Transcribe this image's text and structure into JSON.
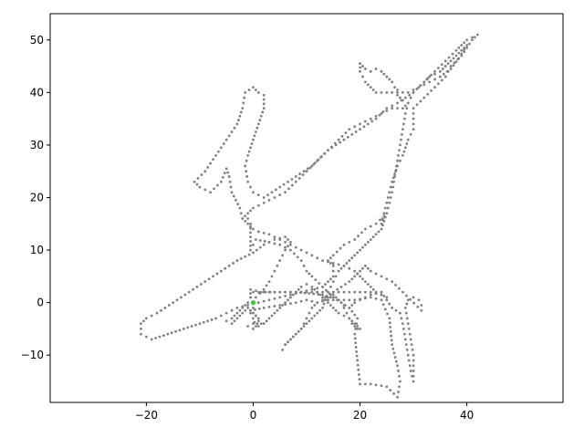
{
  "chart_data": {
    "type": "scatter",
    "title": "",
    "xlabel": "",
    "ylabel": "",
    "xlim": [
      -38,
      58
    ],
    "ylim": [
      -19,
      55
    ],
    "x_ticks": [
      -20,
      0,
      20,
      40
    ],
    "y_ticks": [
      -10,
      0,
      10,
      20,
      30,
      40,
      50
    ],
    "x_tick_labels": [
      "−20",
      "0",
      "20",
      "40"
    ],
    "y_tick_labels": [
      "−10",
      "0",
      "10",
      "20",
      "30",
      "40",
      "50"
    ],
    "grid": false,
    "legend": "none",
    "point_color": "#808080",
    "highlight_color": "#33cc33",
    "trajectory_waypoints": [
      [
        0,
        0
      ],
      [
        -0.5,
        1
      ],
      [
        -0.5,
        2.5
      ],
      [
        1.5,
        2
      ],
      [
        4,
        2
      ],
      [
        8,
        2
      ],
      [
        13,
        1.5
      ],
      [
        14,
        0.5
      ],
      [
        16,
        0.5
      ],
      [
        19,
        0.5
      ],
      [
        22,
        1
      ],
      [
        24,
        0.5
      ],
      [
        25.5,
        -3
      ],
      [
        26,
        -8
      ],
      [
        27,
        -12
      ],
      [
        27.5,
        -15
      ],
      [
        27,
        -18
      ],
      [
        25,
        -16
      ],
      [
        22,
        -15.5
      ],
      [
        20,
        -15.5
      ],
      [
        19.5,
        -11
      ],
      [
        19,
        -6
      ],
      [
        19.5,
        -3
      ],
      [
        18,
        -1
      ],
      [
        15,
        1
      ],
      [
        13,
        3
      ],
      [
        11,
        5
      ],
      [
        10,
        6
      ],
      [
        9,
        8
      ],
      [
        7,
        10
      ],
      [
        5,
        11
      ],
      [
        3,
        11.5
      ],
      [
        0.5,
        12
      ],
      [
        -0.5,
        10
      ],
      [
        -0.5,
        15
      ],
      [
        -1,
        16
      ],
      [
        -2,
        16
      ],
      [
        -2.5,
        18
      ],
      [
        -4,
        21
      ],
      [
        -4.5,
        24
      ],
      [
        -5,
        25.5
      ],
      [
        -6,
        23
      ],
      [
        -8,
        21
      ],
      [
        -10,
        22
      ],
      [
        -11,
        23
      ],
      [
        -9,
        25
      ],
      [
        -7,
        28
      ],
      [
        -5,
        31
      ],
      [
        -3,
        34
      ],
      [
        -2,
        37
      ],
      [
        -1.5,
        40
      ],
      [
        0,
        41
      ],
      [
        1,
        40
      ],
      [
        2,
        39.5
      ],
      [
        2,
        37
      ],
      [
        1,
        34
      ],
      [
        0,
        31
      ],
      [
        -1,
        28
      ],
      [
        -1.5,
        26
      ],
      [
        -1,
        23
      ],
      [
        0,
        21
      ],
      [
        2,
        20
      ],
      [
        5,
        22
      ],
      [
        8,
        24
      ],
      [
        11,
        26
      ],
      [
        14,
        29
      ],
      [
        17,
        31
      ],
      [
        20,
        33
      ],
      [
        23,
        35
      ],
      [
        25,
        37
      ],
      [
        27,
        38
      ],
      [
        30,
        40
      ],
      [
        32,
        42
      ],
      [
        34,
        44
      ],
      [
        36,
        46
      ],
      [
        38,
        48
      ],
      [
        39,
        49
      ],
      [
        40,
        50
      ],
      [
        41,
        50.5
      ],
      [
        42,
        51
      ],
      [
        41,
        50
      ],
      [
        39,
        47
      ],
      [
        37,
        45
      ],
      [
        36,
        43
      ],
      [
        34,
        41
      ],
      [
        32,
        39
      ],
      [
        30,
        37
      ],
      [
        30,
        35
      ],
      [
        30,
        33
      ],
      [
        29,
        31
      ],
      [
        28,
        28
      ],
      [
        27,
        26
      ],
      [
        26,
        23
      ],
      [
        25.5,
        21
      ],
      [
        25,
        19
      ],
      [
        24.5,
        17
      ],
      [
        24,
        15
      ],
      [
        24.5,
        16.5
      ],
      [
        23,
        15
      ],
      [
        21,
        14
      ],
      [
        19,
        12
      ],
      [
        17,
        11
      ],
      [
        15,
        9
      ],
      [
        14,
        8
      ],
      [
        15,
        7
      ],
      [
        15,
        5
      ],
      [
        14,
        4
      ],
      [
        13,
        3
      ],
      [
        11,
        2.5
      ],
      [
        9,
        2
      ],
      [
        7,
        1.5
      ],
      [
        5,
        1
      ],
      [
        3,
        0.5
      ],
      [
        1,
        0
      ],
      [
        -1,
        -0.5
      ],
      [
        -3,
        -1
      ],
      [
        -5,
        -2
      ],
      [
        -7,
        -3
      ],
      [
        -10,
        -4
      ],
      [
        -13,
        -5
      ],
      [
        -16,
        -6
      ],
      [
        -19,
        -7
      ],
      [
        -21,
        -6
      ],
      [
        -21,
        -4
      ],
      [
        -20,
        -3
      ],
      [
        -18,
        -2
      ],
      [
        -15,
        0
      ],
      [
        -12,
        2
      ],
      [
        -9,
        4
      ],
      [
        -6,
        6
      ],
      [
        -3,
        8
      ],
      [
        0,
        9.5
      ],
      [
        2,
        11
      ],
      [
        4,
        12
      ],
      [
        6,
        12.5
      ],
      [
        7,
        11.5
      ],
      [
        6,
        10
      ],
      [
        5,
        8
      ],
      [
        4,
        6
      ],
      [
        3,
        4
      ],
      [
        2,
        2.5
      ],
      [
        0.5,
        1
      ],
      [
        0,
        0
      ],
      [
        0,
        -1
      ],
      [
        -0.5,
        -2
      ],
      [
        0,
        -3
      ],
      [
        0.5,
        -4.5
      ],
      [
        1,
        -3.5
      ],
      [
        0.5,
        -2.5
      ],
      [
        -0.5,
        -1.5
      ],
      [
        2,
        -1
      ],
      [
        5,
        -0.5
      ],
      [
        8,
        0
      ],
      [
        10,
        0.5
      ],
      [
        12,
        0
      ],
      [
        14,
        0.5
      ],
      [
        15,
        1.5
      ],
      [
        16,
        0.5
      ],
      [
        17,
        -0.5
      ],
      [
        18,
        -1
      ],
      [
        19,
        0
      ],
      [
        20,
        0.5
      ],
      [
        22,
        1.5
      ],
      [
        24,
        2
      ],
      [
        25,
        0.5
      ],
      [
        26,
        -1
      ],
      [
        27.5,
        -2
      ],
      [
        28,
        -4
      ],
      [
        28.5,
        -7
      ],
      [
        29,
        -10
      ],
      [
        29.5,
        -13
      ],
      [
        30,
        -15
      ],
      [
        30,
        -13
      ],
      [
        30,
        -10
      ],
      [
        29.5,
        -7
      ],
      [
        29,
        -4
      ],
      [
        28.5,
        -1
      ],
      [
        29,
        0.5
      ],
      [
        30,
        1
      ],
      [
        31,
        0.5
      ],
      [
        31.5,
        -0.5
      ],
      [
        31.5,
        -1.5
      ],
      [
        28,
        2
      ],
      [
        26,
        4
      ],
      [
        24,
        5
      ],
      [
        22,
        6
      ],
      [
        21,
        7
      ],
      [
        20,
        6
      ],
      [
        19,
        5
      ],
      [
        18,
        4
      ],
      [
        16.5,
        3
      ],
      [
        15,
        2
      ],
      [
        14,
        1
      ],
      [
        12,
        0
      ],
      [
        11,
        -1
      ],
      [
        10,
        -3
      ],
      [
        9,
        -5
      ],
      [
        8,
        -6
      ],
      [
        7,
        -7
      ],
      [
        6,
        -8
      ],
      [
        5.5,
        -9
      ],
      [
        6,
        -8
      ],
      [
        7,
        -7
      ],
      [
        8,
        -6
      ],
      [
        9,
        -5
      ],
      [
        10,
        -4
      ],
      [
        11,
        -3
      ],
      [
        12,
        -2
      ],
      [
        13,
        -1
      ],
      [
        13.5,
        0.5
      ],
      [
        14,
        2
      ],
      [
        15,
        4
      ],
      [
        16,
        6
      ],
      [
        17,
        7
      ],
      [
        18,
        8
      ],
      [
        19,
        9
      ],
      [
        20,
        10
      ],
      [
        21,
        11
      ],
      [
        22,
        12
      ],
      [
        23,
        13
      ],
      [
        24,
        14
      ],
      [
        24.5,
        15.5
      ],
      [
        25,
        17
      ],
      [
        25.5,
        19
      ],
      [
        26,
        21
      ],
      [
        26.5,
        24
      ],
      [
        27,
        27
      ],
      [
        27.5,
        30
      ],
      [
        28,
        33
      ],
      [
        28.5,
        36
      ],
      [
        29,
        38
      ],
      [
        30,
        40
      ],
      [
        32,
        42
      ],
      [
        33,
        43
      ],
      [
        35,
        44
      ],
      [
        36,
        45
      ],
      [
        37,
        46
      ],
      [
        38,
        47
      ],
      [
        39,
        48
      ],
      [
        40,
        49
      ],
      [
        38.5,
        46.5
      ],
      [
        37,
        44.5
      ],
      [
        35,
        43
      ],
      [
        33,
        42
      ],
      [
        31,
        41
      ],
      [
        29,
        40
      ],
      [
        27,
        40
      ],
      [
        25,
        40
      ],
      [
        23,
        40
      ],
      [
        22,
        41
      ],
      [
        21,
        42
      ],
      [
        20.5,
        43
      ],
      [
        20,
        44
      ],
      [
        20,
        45.5
      ],
      [
        20.5,
        45
      ],
      [
        21,
        44.5
      ],
      [
        22,
        44
      ],
      [
        23,
        44.5
      ],
      [
        24,
        44
      ],
      [
        25,
        43
      ],
      [
        26,
        42
      ],
      [
        26.5,
        41
      ],
      [
        27,
        40.5
      ],
      [
        27,
        39.5
      ],
      [
        28,
        38.5
      ],
      [
        29,
        38
      ],
      [
        28,
        37
      ],
      [
        26,
        37
      ],
      [
        24,
        36
      ],
      [
        22,
        35
      ],
      [
        20,
        34
      ],
      [
        18,
        33
      ],
      [
        16,
        31
      ],
      [
        14,
        29
      ],
      [
        12,
        27
      ],
      [
        10,
        25
      ],
      [
        8,
        23
      ],
      [
        6,
        21
      ],
      [
        4,
        20
      ],
      [
        2,
        19
      ],
      [
        0,
        18
      ],
      [
        -1,
        17
      ],
      [
        -2,
        16
      ],
      [
        -1,
        15
      ],
      [
        0,
        14
      ],
      [
        1,
        13.5
      ],
      [
        3,
        13
      ],
      [
        5,
        12
      ],
      [
        7,
        11
      ],
      [
        9,
        10
      ],
      [
        11,
        9
      ],
      [
        13,
        8
      ],
      [
        15,
        7.5
      ],
      [
        17,
        7
      ],
      [
        18,
        6.5
      ],
      [
        19,
        6
      ],
      [
        20,
        5
      ],
      [
        21,
        4
      ],
      [
        22,
        3
      ],
      [
        23,
        2
      ],
      [
        24,
        1.5
      ],
      [
        25,
        1
      ],
      [
        24,
        1.5
      ],
      [
        22,
        2
      ],
      [
        20,
        2
      ],
      [
        18,
        2
      ],
      [
        16,
        2
      ],
      [
        14,
        2
      ],
      [
        12,
        2
      ],
      [
        10,
        2
      ],
      [
        8,
        2
      ],
      [
        6,
        2
      ],
      [
        4,
        2
      ],
      [
        2,
        2
      ],
      [
        0,
        2
      ],
      [
        -1,
        0
      ],
      [
        -2,
        -1
      ],
      [
        -3,
        -2
      ],
      [
        -4,
        -3
      ],
      [
        -5,
        -3.5
      ],
      [
        -4,
        -4
      ],
      [
        -3,
        -3
      ],
      [
        -2,
        -2
      ],
      [
        -1,
        -1
      ],
      [
        0,
        -2
      ],
      [
        1,
        -3
      ],
      [
        1.5,
        -4
      ],
      [
        0,
        -4
      ],
      [
        -1,
        -4.5
      ],
      [
        0,
        -5
      ],
      [
        2,
        -4
      ],
      [
        3,
        -3
      ],
      [
        4,
        -2
      ],
      [
        5,
        -1
      ],
      [
        6,
        0
      ],
      [
        7,
        1
      ],
      [
        8,
        2
      ],
      [
        9,
        3
      ],
      [
        10,
        3.5
      ],
      [
        11,
        3
      ],
      [
        12,
        2
      ],
      [
        13,
        1
      ],
      [
        14,
        0
      ],
      [
        15,
        -1
      ],
      [
        16,
        -2
      ],
      [
        17,
        -2.5
      ],
      [
        18,
        -3
      ],
      [
        18.5,
        -4
      ],
      [
        19,
        -4.5
      ],
      [
        19.5,
        -5
      ],
      [
        20,
        -5
      ],
      [
        19,
        -4
      ],
      [
        18,
        -3
      ],
      [
        17,
        -1
      ]
    ],
    "highlight_point": [
      0,
      0
    ]
  }
}
